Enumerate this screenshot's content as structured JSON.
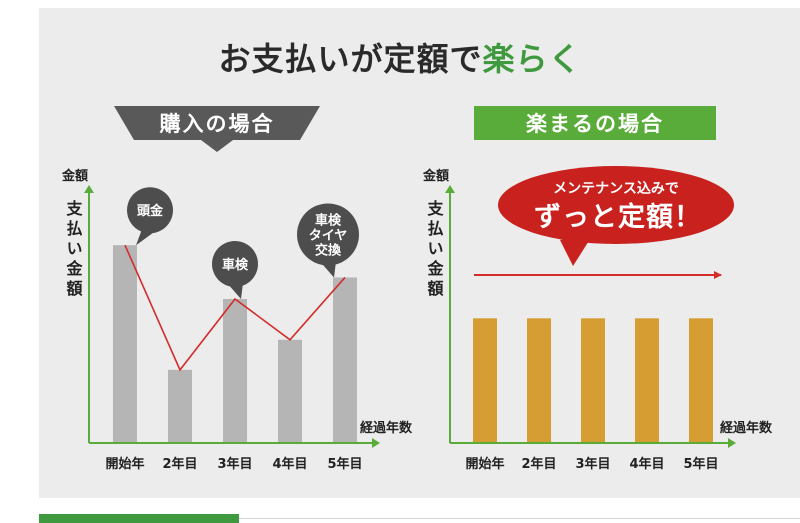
{
  "title": {
    "part1": "お支払いが定額で",
    "part2": "楽らく"
  },
  "colors": {
    "panel_bg": "#ececec",
    "green": "#5aac3a",
    "dark_banner": "#595959",
    "gray_bar": "#b5b5b5",
    "orange_bar": "#d69e32",
    "red": "#d42b2b",
    "bubble_red": "#c9211e",
    "axis_green": "#5aac3a"
  },
  "chart_data": [
    {
      "type": "bar",
      "banner": "購入の場合",
      "ylabel_top": "金額",
      "ylabel_side": "支払い金額",
      "xlabel": "経過年数",
      "categories": [
        "開始年",
        "2年目",
        "3年目",
        "4年目",
        "5年目"
      ],
      "values": [
        92,
        34,
        67,
        48,
        77
      ],
      "ylim": [
        0,
        120
      ],
      "trend_line": true,
      "callouts": [
        {
          "category": "開始年",
          "lines": [
            "頭金"
          ]
        },
        {
          "category": "3年目",
          "lines": [
            "車検"
          ]
        },
        {
          "category": "5年目",
          "lines": [
            "車検",
            "タイヤ",
            "交換"
          ]
        }
      ]
    },
    {
      "type": "bar",
      "banner": "楽まるの場合",
      "ylabel_top": "金額",
      "ylabel_side": "支払い金額",
      "xlabel": "経過年数",
      "categories": [
        "開始年",
        "2年目",
        "3年目",
        "4年目",
        "5年目"
      ],
      "values": [
        58,
        58,
        58,
        58,
        58
      ],
      "ylim": [
        0,
        120
      ],
      "callout": {
        "line1": "メンテナンス込みで",
        "line2": "ずっと定額！"
      }
    }
  ]
}
